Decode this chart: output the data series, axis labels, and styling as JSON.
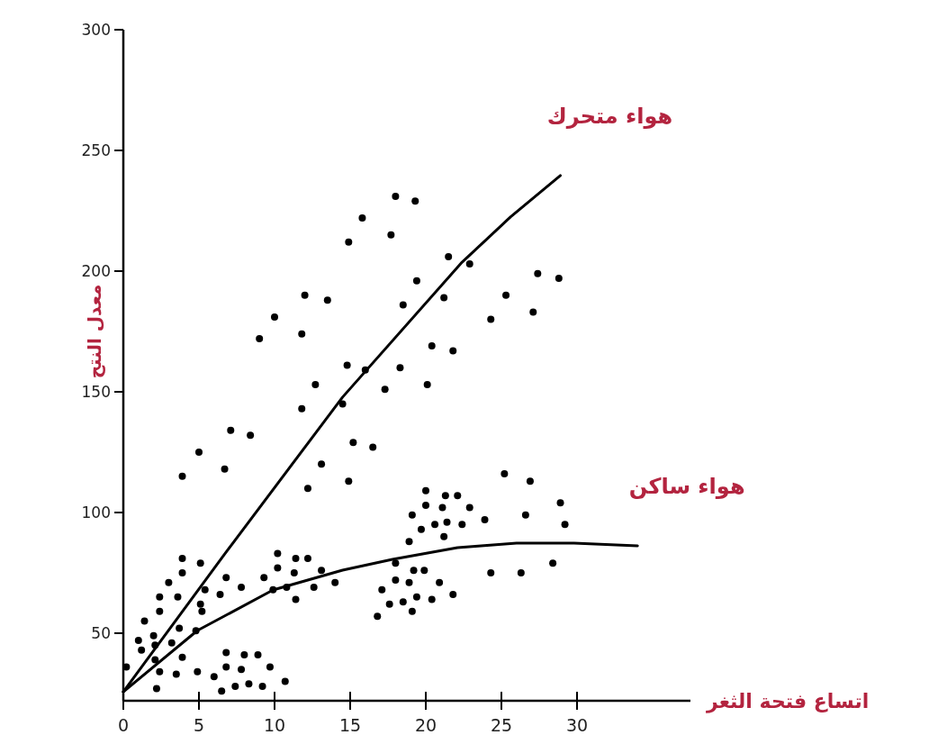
{
  "chart_data": {
    "type": "scatter",
    "xlabel": "اتساع فتحة الثغر",
    "ylabel": "معدل النتح",
    "xlim": [
      0,
      37.5
    ],
    "ylim": [
      22,
      300
    ],
    "xticks": [
      0,
      5,
      10,
      15,
      20,
      25,
      30
    ],
    "yticks": [
      50,
      100,
      150,
      200,
      250,
      300
    ],
    "series": [
      {
        "marker": "circle",
        "color": "#000000",
        "x": [
          18.0,
          19.3,
          15.8,
          17.7,
          14.9,
          19.4,
          12.0,
          13.5,
          10.0,
          11.8,
          9.0,
          18.5,
          20.4,
          14.8,
          16.0,
          18.3,
          12.7,
          17.3,
          20.1,
          21.5,
          22.9,
          27.4,
          28.8,
          25.3,
          21.2,
          24.3,
          27.1,
          21.8,
          11.8,
          14.5,
          7.1,
          8.4,
          5.0,
          15.2,
          16.5,
          13.1,
          3.9,
          6.7,
          12.2,
          14.9,
          25.2,
          26.9,
          28.9,
          29.2,
          26.6,
          28.4,
          24.3,
          26.3,
          20.0,
          21.3,
          22.1,
          20.0,
          21.1,
          22.9,
          19.1,
          20.6,
          21.4,
          22.4,
          23.9,
          19.7,
          21.2,
          18.9,
          18.0,
          19.2,
          19.9,
          18.0,
          18.9,
          20.9,
          17.1,
          19.4,
          21.8,
          17.6,
          18.5,
          20.4,
          16.8,
          19.1,
          10.2,
          11.4,
          12.2,
          10.2,
          11.3,
          13.1,
          9.3,
          6.8,
          7.8,
          6.4,
          9.9,
          10.8,
          12.6,
          14.0,
          11.4,
          3.9,
          5.1,
          3.9,
          3.0,
          5.4,
          2.4,
          3.6,
          5.1,
          2.4,
          5.2,
          1.4,
          3.7,
          4.8,
          2.0,
          1.0,
          3.2,
          2.1,
          1.2,
          3.9,
          2.1,
          0.2,
          2.4,
          3.5,
          4.9,
          6.0,
          6.8,
          8.0,
          8.9,
          6.8,
          7.8,
          9.7,
          10.7,
          6.5,
          7.4,
          8.3,
          9.2,
          2.2
        ],
        "values": [
          231,
          229,
          222,
          215,
          212,
          196,
          190,
          188,
          181,
          174,
          172,
          186,
          169,
          161,
          159,
          160,
          153,
          151,
          153,
          206,
          203,
          199,
          197,
          190,
          189,
          180,
          183,
          167,
          143,
          145,
          134,
          132,
          125,
          129,
          127,
          120,
          115,
          118,
          110,
          113,
          116,
          113,
          104,
          95,
          99,
          79,
          75,
          75,
          109,
          107,
          107,
          103,
          102,
          102,
          99,
          95,
          96,
          95,
          97,
          93,
          90,
          88,
          79,
          76,
          76,
          72,
          71,
          71,
          68,
          65,
          66,
          62,
          63,
          64,
          57,
          59,
          83,
          81,
          81,
          77,
          75,
          76,
          73,
          73,
          69,
          66,
          68,
          69,
          69,
          71,
          64,
          81,
          79,
          75,
          71,
          68,
          65,
          65,
          62,
          59,
          59,
          55,
          52,
          51,
          49,
          47,
          46,
          45,
          43,
          40,
          39,
          36,
          34,
          33,
          34,
          32,
          42,
          41,
          41,
          36,
          35,
          36,
          30,
          26,
          28,
          29,
          28,
          27
        ]
      },
      {
        "type": "line",
        "marker": "none",
        "name": "هواء متحرك",
        "color": "#000000",
        "x": [
          0,
          6.7,
          14.5,
          22.4,
          25.6,
          28.9
        ],
        "values": [
          25.7,
          82.8,
          147.8,
          203.7,
          222.4,
          239.6
        ]
      },
      {
        "type": "line",
        "marker": "none",
        "name": "هواء ساكن",
        "color": "#000000",
        "x": [
          0,
          4.9,
          9.9,
          14.5,
          17.8,
          22.1,
          26.0,
          29.8,
          34.0
        ],
        "values": [
          25.7,
          51.1,
          67.9,
          76.1,
          80.6,
          85.4,
          87.3,
          87.3,
          86.2
        ]
      }
    ]
  }
}
